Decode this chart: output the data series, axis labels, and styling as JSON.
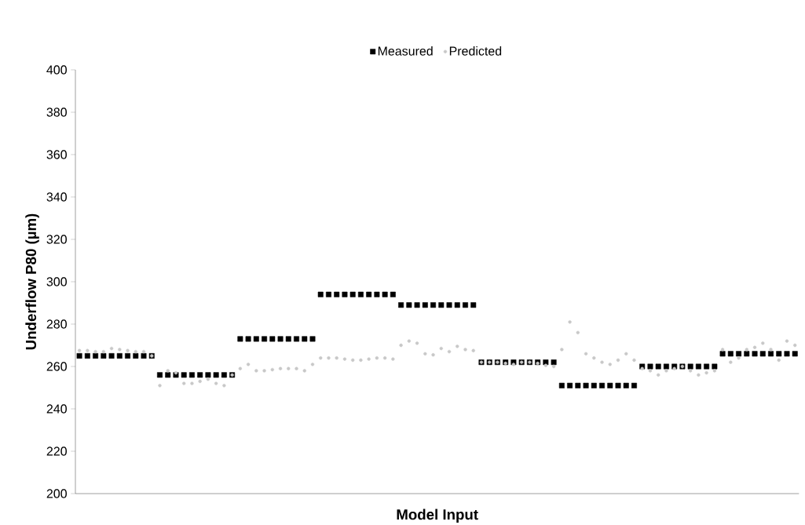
{
  "chart_data": {
    "type": "scatter",
    "xlabel": "Model Input",
    "ylabel": "Underflow P80 (µm)",
    "legend": "top",
    "categories": [
      null,
      null,
      null,
      null,
      null,
      null,
      null,
      null,
      null,
      null,
      null,
      null,
      null,
      null,
      null,
      null,
      null,
      null,
      null,
      null,
      null,
      null,
      null,
      null,
      null,
      null,
      null,
      null,
      null,
      null,
      null,
      null,
      null,
      null,
      null,
      null,
      null,
      null,
      null,
      null,
      null,
      null,
      null,
      null,
      null,
      null,
      null,
      null,
      null,
      null,
      null,
      null,
      null,
      null,
      null,
      null,
      null,
      null,
      null,
      null,
      null,
      null,
      null,
      null,
      null,
      null,
      null,
      null,
      null,
      null,
      null,
      null,
      null,
      null,
      null,
      null,
      null,
      null,
      null,
      null,
      null,
      null,
      null,
      null,
      null,
      null,
      null,
      null,
      null,
      null
    ],
    "ylim": [
      200,
      400
    ],
    "yticks": [
      200,
      220,
      240,
      260,
      280,
      300,
      320,
      340,
      360,
      380,
      400
    ],
    "series": [
      {
        "name": "Measured",
        "color": "#000000",
        "marker": "square",
        "values": [
          265,
          265,
          265,
          265,
          265,
          265,
          265,
          265,
          265,
          265,
          256,
          256,
          256,
          256,
          256,
          256,
          256,
          256,
          256,
          256,
          273,
          273,
          273,
          273,
          273,
          273,
          273,
          273,
          273,
          273,
          294,
          294,
          294,
          294,
          294,
          294,
          294,
          294,
          294,
          294,
          289,
          289,
          289,
          289,
          289,
          289,
          289,
          289,
          289,
          289,
          262,
          262,
          262,
          262,
          262,
          262,
          262,
          262,
          262,
          262,
          251,
          251,
          251,
          251,
          251,
          251,
          251,
          251,
          251,
          251,
          260,
          260,
          260,
          260,
          260,
          260,
          260,
          260,
          260,
          260,
          266,
          266,
          266,
          266,
          266,
          266,
          266,
          266,
          266,
          266
        ]
      },
      {
        "name": "Predicted",
        "color": "#c8c8c8",
        "marker": "circle",
        "values": [
          267.5,
          267.5,
          267,
          267,
          268.5,
          268,
          267.5,
          267,
          267,
          265,
          251,
          258,
          257,
          252,
          252,
          253,
          254,
          252,
          251,
          256,
          259,
          261,
          258,
          258,
          258.5,
          259,
          259,
          259,
          258,
          261,
          264,
          264,
          264,
          263.5,
          263,
          263,
          263.5,
          264,
          264,
          263.5,
          270,
          272,
          271,
          266,
          265.5,
          268.5,
          267,
          269.5,
          268,
          267.5,
          262,
          262,
          262,
          261.5,
          261,
          262,
          262,
          261.5,
          260.5,
          260,
          268,
          281,
          276,
          266,
          264,
          262,
          261,
          263,
          266,
          263,
          259,
          258,
          256,
          258,
          259,
          260,
          258,
          256,
          257,
          258,
          268,
          262,
          264,
          268,
          269,
          271,
          268,
          263,
          272,
          270
        ]
      }
    ]
  }
}
